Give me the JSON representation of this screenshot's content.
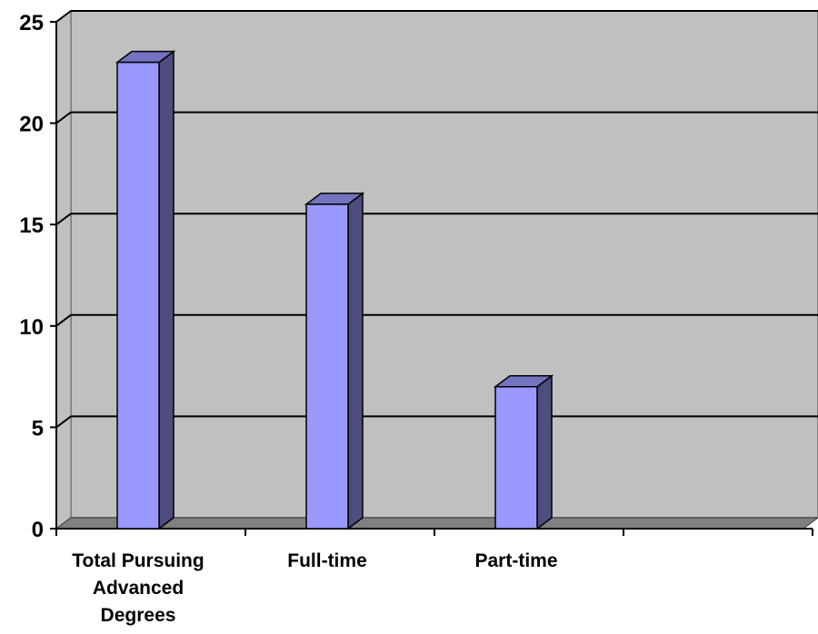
{
  "chart_data": {
    "type": "bar",
    "three_d": true,
    "categories": [
      "Total Pursuing Advanced Degrees",
      "Full-time",
      "Part-time",
      ""
    ],
    "category_label_lines": [
      [
        "Total Pursuing",
        "Advanced",
        "Degrees"
      ],
      [
        "Full-time"
      ],
      [
        "Part-time"
      ],
      []
    ],
    "values": [
      23,
      16,
      7,
      null
    ],
    "title": "",
    "xlabel": "",
    "ylabel": "",
    "ylim": [
      0,
      25
    ],
    "yticks": [
      0,
      5,
      10,
      15,
      20,
      25
    ],
    "grid": true,
    "legend": "none",
    "colors": {
      "bar_front": "#9999ff",
      "bar_side": "#4d4d80",
      "bar_top": "#7373bf",
      "plot_wall": "#c0c0c0",
      "plot_floor": "#808080",
      "gridline": "#000000"
    }
  }
}
